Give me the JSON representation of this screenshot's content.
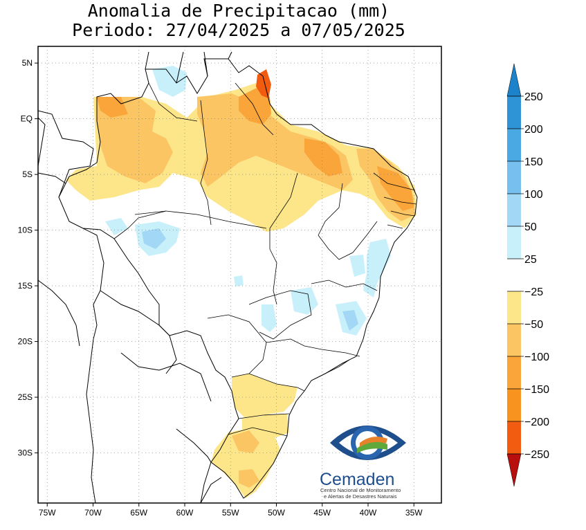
{
  "title": {
    "line1": "Anomalia de Precipitacao (mm)",
    "line2": "Periodo: 27/04/2025 a 07/05/2025"
  },
  "axes": {
    "lat_labels": [
      "5N",
      "EQ",
      "5S",
      "10S",
      "15S",
      "20S",
      "25S",
      "30S"
    ],
    "lat_values": [
      5,
      0,
      -5,
      -10,
      -15,
      -20,
      -25,
      -30
    ],
    "lon_labels": [
      "75W",
      "70W",
      "65W",
      "60W",
      "55W",
      "50W",
      "45W",
      "40W",
      "35W"
    ],
    "lon_values": [
      -75,
      -70,
      -65,
      -60,
      -55,
      -50,
      -45,
      -40,
      -35
    ],
    "lat_range": [
      -34.5,
      6.5
    ],
    "lon_range": [
      -76,
      -32
    ],
    "grid": "dotted"
  },
  "colorbar": {
    "labels": [
      "250",
      "200",
      "150",
      "100",
      "50",
      "25",
      "−25",
      "−50",
      "−100",
      "−150",
      "−200",
      "−250"
    ],
    "colors": {
      "p250": "#1c82c9",
      "p200": "#2e94d6",
      "p150": "#4aa8e2",
      "p100": "#76bfee",
      "p50": "#a2d8f6",
      "p25": "#c8f0fb",
      "neutral": "#ffffff",
      "n25": "#fde68a",
      "n50": "#fbc564",
      "n100": "#f9a53a",
      "n150": "#f7931e",
      "n200": "#f25c10",
      "n250": "#d11a0a",
      "extreme_dry": "#b80e0e"
    }
  },
  "logo": {
    "name": "Cemaden",
    "subtitle_line1": "Centro Nacional de Monitoramento",
    "subtitle_line2": "e Alertas de Desastres Naturais"
  }
}
